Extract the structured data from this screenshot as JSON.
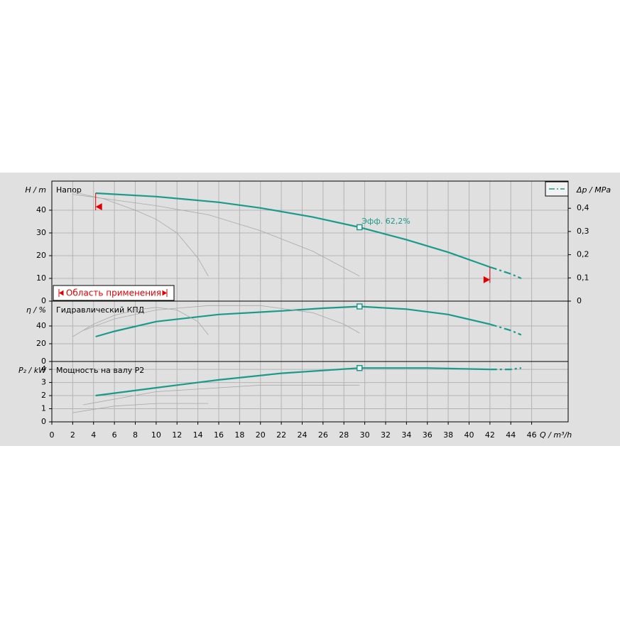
{
  "chart_data": [
    {
      "type": "line",
      "title": "Напор",
      "ylabel": "H / m",
      "ylim": [
        0,
        52.8
      ],
      "yticks": [
        0,
        10,
        20,
        30,
        40
      ],
      "y2label": "Δp / MPa",
      "y2lim": [
        0,
        0.517
      ],
      "y2ticks": [
        0,
        {
          "value": 0.1,
          "label": "0,1"
        },
        {
          "value": 0.2,
          "label": "0,2"
        },
        {
          "value": 0.3,
          "label": "0,3"
        },
        {
          "value": 0.4,
          "label": "0,4"
        }
      ],
      "annotation": "Эфф.  62,2%",
      "duty_point": [
        29.5,
        32.5
      ],
      "application_range_label": "Область применения",
      "application_range": [
        4.2,
        42
      ],
      "series": [
        {
          "color": "#1a9a8a",
          "x": [
            4.2,
            10,
            16,
            20,
            25,
            29.5,
            34,
            38,
            42
          ],
          "values": [
            47.5,
            46,
            43.5,
            41,
            37,
            32.5,
            27,
            21.5,
            15
          ]
        },
        {
          "color": "#1a9a8a",
          "dashed": true,
          "x": [
            42,
            44,
            45
          ],
          "values": [
            15,
            12,
            10
          ]
        },
        {
          "color": "#a8a8a8",
          "x": [
            2,
            5,
            8,
            10,
            12,
            14,
            15
          ],
          "values": [
            48,
            45,
            40,
            36,
            30,
            19,
            11
          ]
        },
        {
          "color": "#a8a8a8",
          "x": [
            2,
            6,
            10,
            15,
            20,
            25,
            29.5
          ],
          "values": [
            47,
            44.5,
            42,
            38,
            31,
            22,
            11
          ]
        }
      ]
    },
    {
      "type": "line",
      "title": "Гидравлический КПД",
      "ylabel": "η / %",
      "ylim": [
        0,
        68
      ],
      "yticks": [
        0,
        20,
        40
      ],
      "duty_point": [
        29.5,
        62
      ],
      "series": [
        {
          "color": "#1a9a8a",
          "x": [
            4.2,
            6,
            10,
            16,
            22,
            26,
            29.5,
            34,
            38,
            42
          ],
          "values": [
            28,
            34,
            45,
            53,
            57,
            60,
            62,
            59,
            53,
            42
          ]
        },
        {
          "color": "#1a9a8a",
          "dashed": true,
          "x": [
            42,
            44,
            45
          ],
          "values": [
            42,
            35,
            30
          ]
        },
        {
          "color": "#a8a8a8",
          "x": [
            2,
            4,
            6,
            8,
            10,
            12,
            14,
            15
          ],
          "values": [
            28,
            42,
            52,
            58,
            61,
            58,
            45,
            30
          ]
        },
        {
          "color": "#a8a8a8",
          "x": [
            3,
            6,
            10,
            15,
            20,
            25,
            28,
            29.5
          ],
          "values": [
            35,
            48,
            58,
            63,
            63,
            55,
            42,
            32
          ]
        }
      ]
    },
    {
      "type": "line",
      "title": "Мощность на валу P2",
      "ylabel": "P₂ / kW",
      "ylim": [
        0,
        4.6
      ],
      "yticks": [
        0,
        1,
        2,
        3,
        4
      ],
      "duty_point": [
        29.5,
        4.1
      ],
      "xlabel": "Q / m³/h",
      "xlim": [
        0,
        49.5
      ],
      "xticks": [
        0,
        2,
        4,
        6,
        8,
        10,
        12,
        14,
        16,
        18,
        20,
        22,
        24,
        26,
        28,
        30,
        32,
        34,
        36,
        38,
        40,
        42,
        44,
        46
      ],
      "series": [
        {
          "color": "#1a9a8a",
          "x": [
            4.2,
            10,
            16,
            22,
            29.5,
            36,
            42
          ],
          "values": [
            2.0,
            2.6,
            3.2,
            3.7,
            4.1,
            4.1,
            4.0
          ]
        },
        {
          "color": "#1a9a8a",
          "dashed": true,
          "x": [
            42,
            44,
            45
          ],
          "values": [
            4.0,
            4.0,
            4.1
          ]
        },
        {
          "color": "#a8a8a8",
          "x": [
            2,
            6,
            10,
            14,
            15
          ],
          "values": [
            0.7,
            1.2,
            1.4,
            1.4,
            1.4
          ]
        },
        {
          "color": "#a8a8a8",
          "x": [
            3,
            10,
            20,
            29.5
          ],
          "values": [
            1.3,
            2.3,
            2.8,
            2.8
          ]
        }
      ]
    }
  ]
}
